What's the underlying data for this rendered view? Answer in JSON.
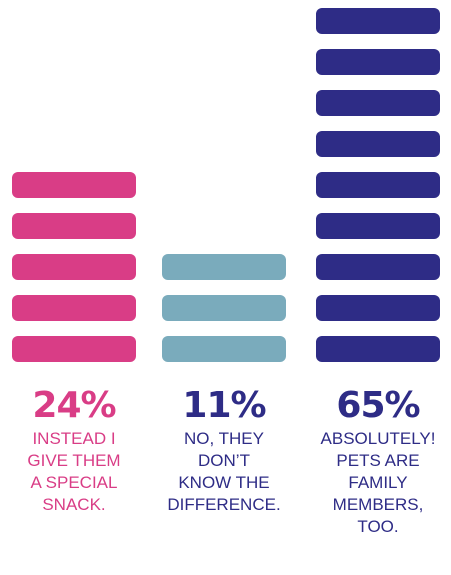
{
  "chart_data": {
    "type": "bar",
    "categories": [
      "INSTEAD I GIVE THEM A SPECIAL SNACK.",
      "NO, THEY DON’T KNOW THE DIFFERENCE.",
      "ABSOLUTELY! PETS ARE FAMILY MEMBERS, TOO."
    ],
    "values": [
      24,
      11,
      65
    ],
    "units": [
      5,
      3,
      9
    ],
    "value_labels": [
      "24%",
      "11%",
      "65%"
    ],
    "colors": [
      "#d93d86",
      "#7aabbc",
      "#2e2c86"
    ],
    "title": "",
    "xlabel": "",
    "ylabel": ""
  },
  "labels": [
    {
      "pct": "24%",
      "text": "INSTEAD I\nGIVE THEM\nA SPECIAL\nSNACK."
    },
    {
      "pct": "11%",
      "text": "NO, THEY\nDON’T\nKNOW THE\nDIFFERENCE."
    },
    {
      "pct": "65%",
      "text": "ABSOLUTELY!\nPETS ARE\nFAMILY\nMEMBERS,\nTOO."
    }
  ]
}
